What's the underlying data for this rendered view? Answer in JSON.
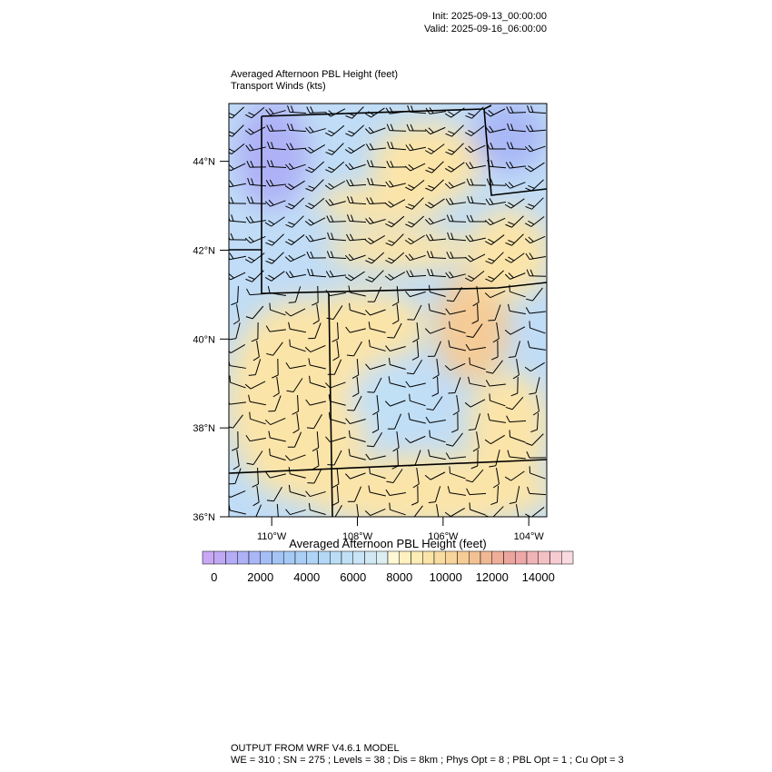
{
  "header": {
    "init": "Init: 2025-09-13_00:00:00",
    "valid": "Valid: 2025-09-16_06:00:00"
  },
  "chart_data": {
    "type": "map",
    "title": "Averaged Afternoon PBL Height   (feet)",
    "subtitle": "Transport Winds   (kts)",
    "xlim": [
      -111,
      -103.58
    ],
    "ylim": [
      36,
      45.3
    ],
    "xticks": [
      {
        "value": -110,
        "label": "110°W"
      },
      {
        "value": -108,
        "label": "108°W"
      },
      {
        "value": -106,
        "label": "106°W"
      },
      {
        "value": -104,
        "label": "104°W"
      }
    ],
    "yticks": [
      {
        "value": 36,
        "label": "36°N"
      },
      {
        "value": 38,
        "label": "38°N"
      },
      {
        "value": 40,
        "label": "40°N"
      },
      {
        "value": 42,
        "label": "42°N"
      },
      {
        "value": 44,
        "label": "44°N"
      }
    ],
    "colorbar": {
      "title": "Averaged Afternoon PBL Height  (feet)",
      "lim": [
        -500,
        15500
      ],
      "ticks": [
        0,
        2000,
        4000,
        6000,
        8000,
        10000,
        12000,
        14000
      ],
      "colors": [
        "#c8a8f4",
        "#bfa9f4",
        "#b6acf5",
        "#aeb1f6",
        "#a9b7f6",
        "#a6bef6",
        "#a4c4f6",
        "#a6caf6",
        "#aacff6",
        "#afd4f6",
        "#b4d8f6",
        "#badcf6",
        "#c0e0f6",
        "#c8e4f6",
        "#d2e8f4",
        "#dceef2",
        "#fff8d4",
        "#fff2c0",
        "#fdecb4",
        "#fbe4a8",
        "#f9dca0",
        "#f7d49a",
        "#f5cb96",
        "#f3c294",
        "#f1b894",
        "#efae98",
        "#eca49e",
        "#eea8a8",
        "#f0b4b6",
        "#f3c0c4",
        "#f6ccd2",
        "#f9dae0"
      ]
    }
  },
  "footer": {
    "line1": "OUTPUT FROM WRF V4.6.1 MODEL",
    "line2": "WE = 310 ; SN = 275 ; Levels = 38 ; Dis = 8km ; Phys Opt = 8 ; PBL Opt = 1 ; Cu Opt = 3"
  }
}
